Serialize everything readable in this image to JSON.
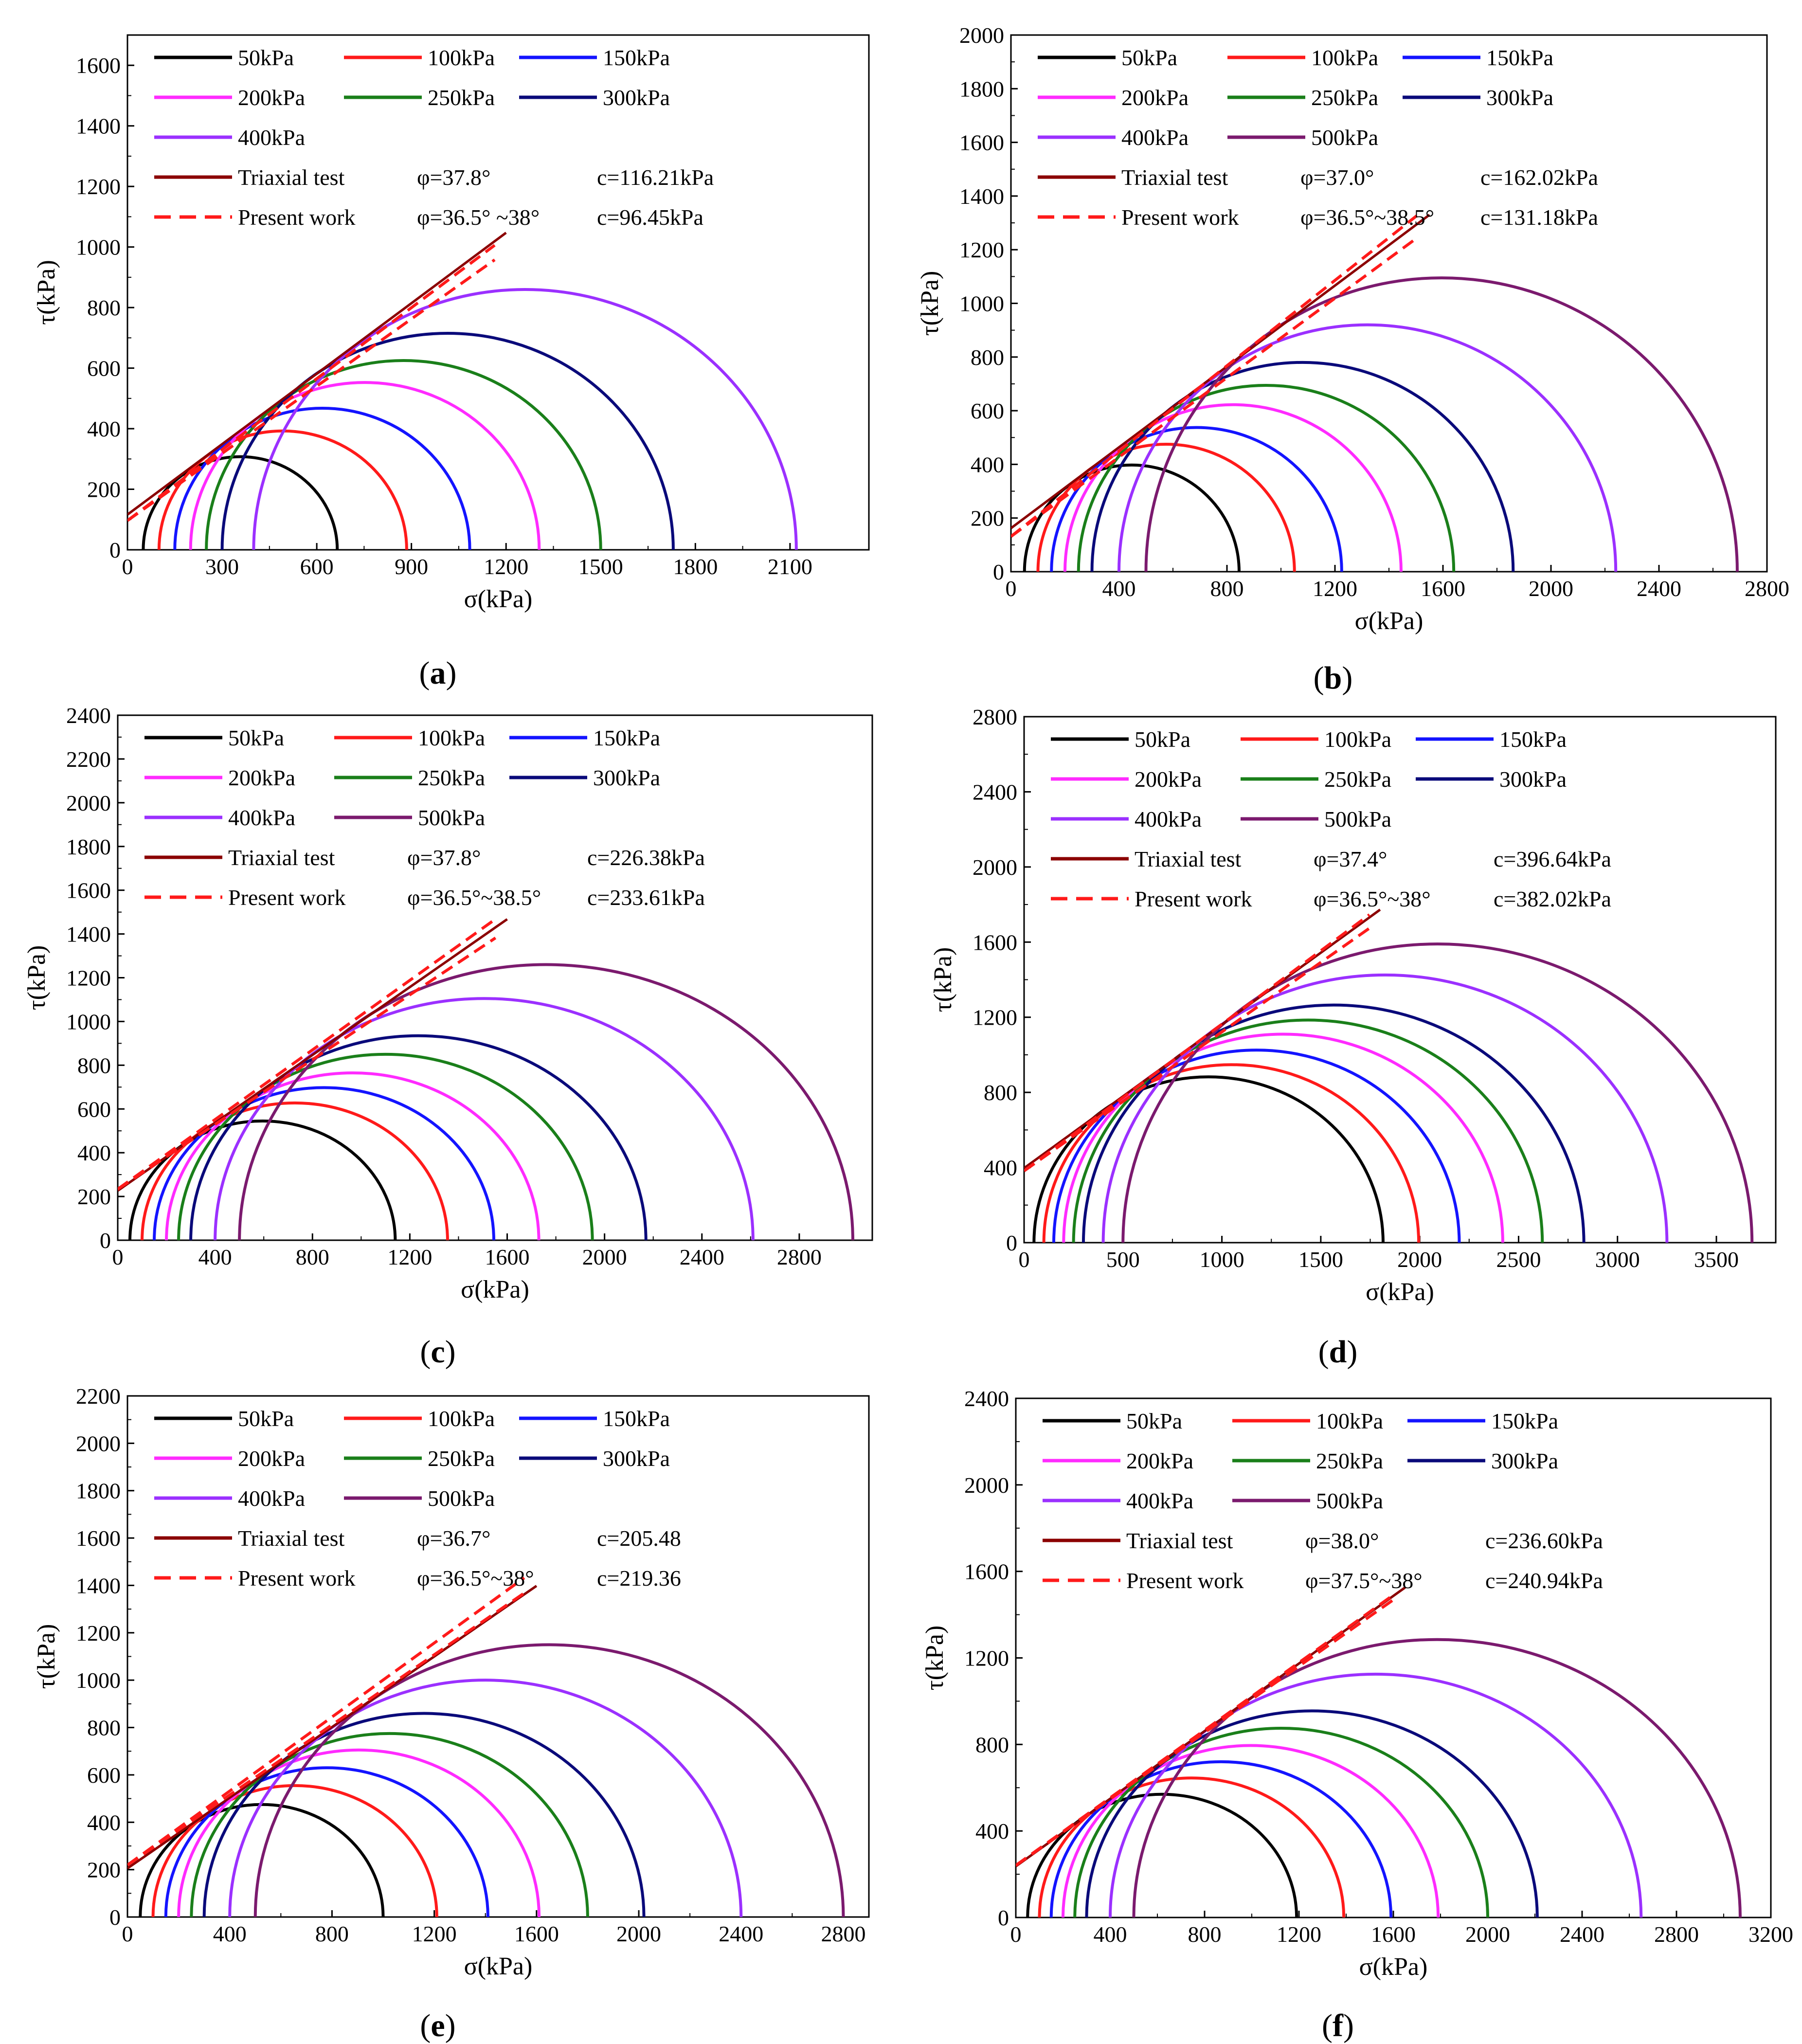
{
  "figure": {
    "colors": {
      "50kPa": "#000000",
      "100kPa": "#ff1a1a",
      "150kPa": "#1414ff",
      "200kPa": "#ff2bff",
      "250kPa": "#1a7f1a",
      "300kPa": "#0a0a7a",
      "400kPa": "#9b30ff",
      "500kPa": "#7b1a6e",
      "triaxial": "#8b0000",
      "present": "#ff1a1a"
    }
  },
  "chart_data": [
    {
      "panel": "a",
      "caption": "(a)",
      "caption_letter": "a",
      "type": "line",
      "xlabel": "σ(kPa)",
      "ylabel": "τ(kPa)",
      "xlim": [
        0,
        2350
      ],
      "ylim": [
        0,
        1700
      ],
      "xticks": [
        0,
        300,
        600,
        900,
        1200,
        1500,
        1800,
        2100
      ],
      "yticks": [
        0,
        200,
        400,
        600,
        800,
        1000,
        1200,
        1400,
        1600
      ],
      "legend_placement": "top-left",
      "series": [
        {
          "name": "50kPa",
          "sigma3": 50,
          "sigma1": 665
        },
        {
          "name": "100kPa",
          "sigma3": 100,
          "sigma1": 885
        },
        {
          "name": "150kPa",
          "sigma3": 150,
          "sigma1": 1085
        },
        {
          "name": "200kPa",
          "sigma3": 200,
          "sigma1": 1305
        },
        {
          "name": "250kPa",
          "sigma3": 250,
          "sigma1": 1500
        },
        {
          "name": "300kPa",
          "sigma3": 300,
          "sigma1": 1730
        },
        {
          "name": "400kPa",
          "sigma3": 400,
          "sigma1": 2120
        }
      ],
      "envelopes": [
        {
          "name": "Triaxial test",
          "phi_text": "φ=37.8°",
          "c_text": "c=116.21kPa",
          "phi": 37.8,
          "c": 116.21,
          "x_end": 1200,
          "style": "solid"
        },
        {
          "name": "Present work",
          "phi_text": "φ=36.5° ~38°",
          "c_text": "c=96.45kPa",
          "phi_min": 36.5,
          "phi_max": 38,
          "c": 96.45,
          "x_end": 1200,
          "style": "dashed"
        }
      ]
    },
    {
      "panel": "b",
      "caption": "(b)",
      "caption_letter": "b",
      "type": "line",
      "xlabel": "σ(kPa)",
      "ylabel": "τ(kPa)",
      "xlim": [
        0,
        2800
      ],
      "ylim": [
        0,
        2000
      ],
      "xticks": [
        0,
        400,
        800,
        1200,
        1600,
        2000,
        2400,
        2800
      ],
      "yticks": [
        0,
        200,
        400,
        600,
        800,
        1000,
        1200,
        1400,
        1600,
        1800,
        2000
      ],
      "legend_placement": "top-left",
      "series": [
        {
          "name": "50kPa",
          "sigma3": 50,
          "sigma1": 845
        },
        {
          "name": "100kPa",
          "sigma3": 100,
          "sigma1": 1050
        },
        {
          "name": "150kPa",
          "sigma3": 150,
          "sigma1": 1225
        },
        {
          "name": "200kPa",
          "sigma3": 200,
          "sigma1": 1445
        },
        {
          "name": "250kPa",
          "sigma3": 250,
          "sigma1": 1640
        },
        {
          "name": "300kPa",
          "sigma3": 300,
          "sigma1": 1860
        },
        {
          "name": "400kPa",
          "sigma3": 400,
          "sigma1": 2240
        },
        {
          "name": "500kPa",
          "sigma3": 500,
          "sigma1": 2690
        }
      ],
      "envelopes": [
        {
          "name": "Triaxial test",
          "phi_text": "φ=37.0°",
          "c_text": "c=162.02kPa",
          "phi": 37.0,
          "c": 162.02,
          "x_end": 1550,
          "style": "solid"
        },
        {
          "name": "Present work",
          "phi_text": "φ=36.5°~38.5°",
          "c_text": "c=131.18kPa",
          "phi_min": 36.5,
          "phi_max": 38.5,
          "c": 131.18,
          "x_end": 1550,
          "style": "dashed"
        }
      ]
    },
    {
      "panel": "c",
      "caption": "(c)",
      "caption_letter": "c",
      "type": "line",
      "xlabel": "σ(kPa)",
      "ylabel": "τ(kPa)",
      "xlim": [
        0,
        3100
      ],
      "ylim": [
        0,
        2400
      ],
      "xticks": [
        0,
        400,
        800,
        1200,
        1600,
        2000,
        2400,
        2800
      ],
      "yticks": [
        0,
        200,
        400,
        600,
        800,
        1000,
        1200,
        1400,
        1600,
        1800,
        2000,
        2200,
        2400
      ],
      "legend_placement": "top-left",
      "series": [
        {
          "name": "50kPa",
          "sigma3": 50,
          "sigma1": 1140
        },
        {
          "name": "100kPa",
          "sigma3": 100,
          "sigma1": 1355
        },
        {
          "name": "150kPa",
          "sigma3": 150,
          "sigma1": 1545
        },
        {
          "name": "200kPa",
          "sigma3": 200,
          "sigma1": 1730
        },
        {
          "name": "250kPa",
          "sigma3": 250,
          "sigma1": 1950
        },
        {
          "name": "300kPa",
          "sigma3": 300,
          "sigma1": 2170
        },
        {
          "name": "400kPa",
          "sigma3": 400,
          "sigma1": 2610
        },
        {
          "name": "500kPa",
          "sigma3": 500,
          "sigma1": 3020
        }
      ],
      "envelopes": [
        {
          "name": "Triaxial test",
          "phi_text": "φ=37.8°",
          "c_text": "c=226.38kPa",
          "phi": 37.8,
          "c": 226.38,
          "x_end": 1600,
          "style": "solid"
        },
        {
          "name": "Present work",
          "phi_text": "φ=36.5°~38.5°",
          "c_text": "c=233.61kPa",
          "phi_min": 36.5,
          "phi_max": 38.5,
          "c": 233.61,
          "x_end": 1600,
          "style": "dashed"
        }
      ]
    },
    {
      "panel": "d",
      "caption": "(d)",
      "caption_letter": "d",
      "type": "line",
      "xlabel": "σ(kPa)",
      "ylabel": "τ(kPa)",
      "xlim": [
        0,
        3800
      ],
      "ylim": [
        0,
        2800
      ],
      "xticks": [
        0,
        500,
        1000,
        1500,
        2000,
        2500,
        3000,
        3500
      ],
      "yticks": [
        0,
        400,
        800,
        1200,
        1600,
        2000,
        2400,
        2800
      ],
      "legend_placement": "top-left",
      "series": [
        {
          "name": "50kPa",
          "sigma3": 50,
          "sigma1": 1815
        },
        {
          "name": "100kPa",
          "sigma3": 100,
          "sigma1": 1995
        },
        {
          "name": "150kPa",
          "sigma3": 150,
          "sigma1": 2200
        },
        {
          "name": "200kPa",
          "sigma3": 200,
          "sigma1": 2420
        },
        {
          "name": "250kPa",
          "sigma3": 250,
          "sigma1": 2620
        },
        {
          "name": "300kPa",
          "sigma3": 300,
          "sigma1": 2830
        },
        {
          "name": "400kPa",
          "sigma3": 400,
          "sigma1": 3250
        },
        {
          "name": "500kPa",
          "sigma3": 500,
          "sigma1": 3680
        }
      ],
      "envelopes": [
        {
          "name": "Triaxial test",
          "phi_text": "φ=37.4°",
          "c_text": "c=396.64kPa",
          "phi": 37.4,
          "c": 396.64,
          "x_end": 1800,
          "style": "solid"
        },
        {
          "name": "Present work",
          "phi_text": "φ=36.5°~38°",
          "c_text": "c=382.02kPa",
          "phi_min": 36.5,
          "phi_max": 38,
          "c": 382.02,
          "x_end": 1800,
          "style": "dashed"
        }
      ]
    },
    {
      "panel": "e",
      "caption": "(e)",
      "caption_letter": "e",
      "type": "line",
      "xlabel": "σ(kPa)",
      "ylabel": "τ(kPa)",
      "xlim": [
        0,
        2900
      ],
      "ylim": [
        0,
        2200
      ],
      "xticks": [
        0,
        400,
        800,
        1200,
        1600,
        2000,
        2400,
        2800
      ],
      "yticks": [
        0,
        200,
        400,
        600,
        800,
        1000,
        1200,
        1400,
        1600,
        1800,
        2000,
        2200
      ],
      "legend_placement": "top-left",
      "series": [
        {
          "name": "50kPa",
          "sigma3": 50,
          "sigma1": 1000
        },
        {
          "name": "100kPa",
          "sigma3": 100,
          "sigma1": 1210
        },
        {
          "name": "150kPa",
          "sigma3": 150,
          "sigma1": 1410
        },
        {
          "name": "200kPa",
          "sigma3": 200,
          "sigma1": 1610
        },
        {
          "name": "250kPa",
          "sigma3": 250,
          "sigma1": 1800
        },
        {
          "name": "300kPa",
          "sigma3": 300,
          "sigma1": 2020
        },
        {
          "name": "400kPa",
          "sigma3": 400,
          "sigma1": 2400
        },
        {
          "name": "500kPa",
          "sigma3": 500,
          "sigma1": 2800
        }
      ],
      "envelopes": [
        {
          "name": "Triaxial test",
          "phi_text": "φ=36.7°",
          "c_text": "c=205.48",
          "phi": 36.7,
          "c": 205.48,
          "x_end": 1600,
          "style": "solid"
        },
        {
          "name": "Present work",
          "phi_text": "φ=36.5°~38°",
          "c_text": "c=219.36",
          "phi_min": 36.5,
          "phi_max": 38,
          "c": 219.36,
          "x_end": 1600,
          "style": "dashed"
        }
      ]
    },
    {
      "panel": "f",
      "caption": "(f)",
      "caption_letter": "f",
      "type": "line",
      "xlabel": "σ(kPa)",
      "ylabel": "τ(kPa)",
      "xlim": [
        0,
        3200
      ],
      "ylim": [
        0,
        2400
      ],
      "xticks": [
        0,
        400,
        800,
        1200,
        1600,
        2000,
        2400,
        2800,
        3200
      ],
      "yticks": [
        0,
        400,
        800,
        1200,
        1600,
        2000,
        2400
      ],
      "legend_placement": "top-left",
      "series": [
        {
          "name": "50kPa",
          "sigma3": 50,
          "sigma1": 1190
        },
        {
          "name": "100kPa",
          "sigma3": 100,
          "sigma1": 1390
        },
        {
          "name": "150kPa",
          "sigma3": 150,
          "sigma1": 1590
        },
        {
          "name": "200kPa",
          "sigma3": 200,
          "sigma1": 1790
        },
        {
          "name": "250kPa",
          "sigma3": 250,
          "sigma1": 2000
        },
        {
          "name": "300kPa",
          "sigma3": 300,
          "sigma1": 2210
        },
        {
          "name": "400kPa",
          "sigma3": 400,
          "sigma1": 2650
        },
        {
          "name": "500kPa",
          "sigma3": 500,
          "sigma1": 3070
        }
      ],
      "envelopes": [
        {
          "name": "Triaxial test",
          "phi_text": "φ=38.0°",
          "c_text": "c=236.60kPa",
          "phi": 38.0,
          "c": 236.6,
          "x_end": 1650,
          "style": "solid"
        },
        {
          "name": "Present work",
          "phi_text": "φ=37.5°~38°",
          "c_text": "c=240.94kPa",
          "phi_min": 37.5,
          "phi_max": 38,
          "c": 240.94,
          "x_end": 1650,
          "style": "dashed"
        }
      ]
    }
  ]
}
